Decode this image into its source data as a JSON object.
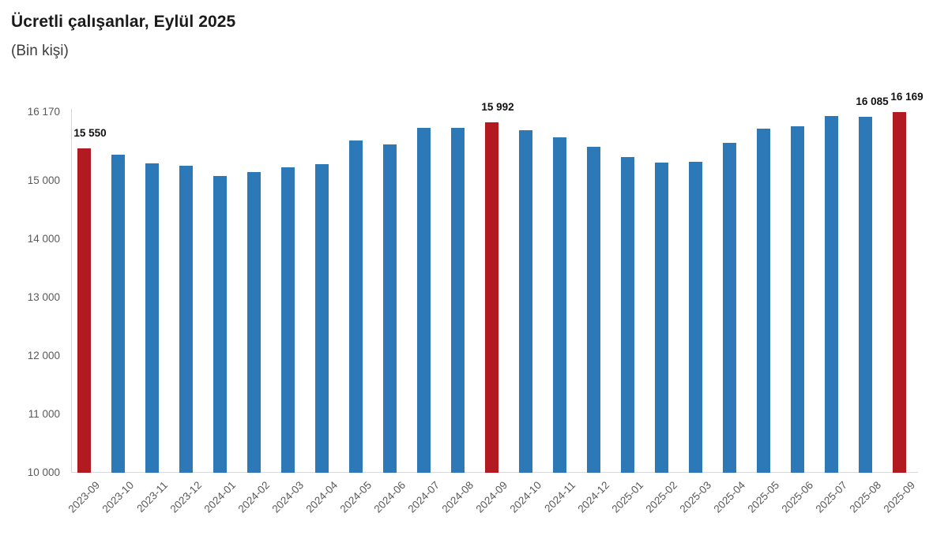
{
  "header": {
    "title": "Ücretli çalışanlar, Eylül 2025",
    "subtitle": "(Bin kişi)"
  },
  "chart_data": {
    "type": "bar",
    "title": "Ücretli çalışanlar, Eylül 2025",
    "subtitle": "(Bin kişi)",
    "xlabel": "",
    "ylabel": "Bin kişi",
    "categories": [
      "2023-09",
      "2023-10",
      "2023-11",
      "2023-12",
      "2024-01",
      "2024-02",
      "2024-03",
      "2024-04",
      "2024-05",
      "2024-06",
      "2024-07",
      "2024-08",
      "2024-09",
      "2024-10",
      "2024-11",
      "2024-12",
      "2025-01",
      "2025-02",
      "2025-03",
      "2025-04",
      "2025-05",
      "2025-06",
      "2025-07",
      "2025-08",
      "2025-09"
    ],
    "values": [
      15550,
      15445,
      15295,
      15250,
      15070,
      15140,
      15220,
      15280,
      15690,
      15610,
      15905,
      15895,
      15992,
      15860,
      15740,
      15575,
      15405,
      15305,
      15325,
      15650,
      15885,
      15930,
      16105,
      16085,
      16169
    ],
    "value_labels": {
      "0": "15 550",
      "12": "15 992",
      "23": "16 085",
      "24": "16 169"
    },
    "highlight_indices": [
      0,
      12,
      24
    ],
    "ylim": [
      10000,
      16170
    ],
    "ytick_values": [
      16170,
      15000,
      14000,
      13000,
      12000,
      11000,
      10000
    ],
    "ytick_labels": [
      "16 170",
      "15 000",
      "14 000",
      "13 000",
      "12 000",
      "11 000",
      "10 000"
    ],
    "grid": false,
    "legend": null,
    "colors": {
      "bar": "#2D79B7",
      "highlight": "#B11A21",
      "axis_line": "#d9d9d9",
      "tick_text": "#595959",
      "value_label_text": "#111111"
    }
  }
}
